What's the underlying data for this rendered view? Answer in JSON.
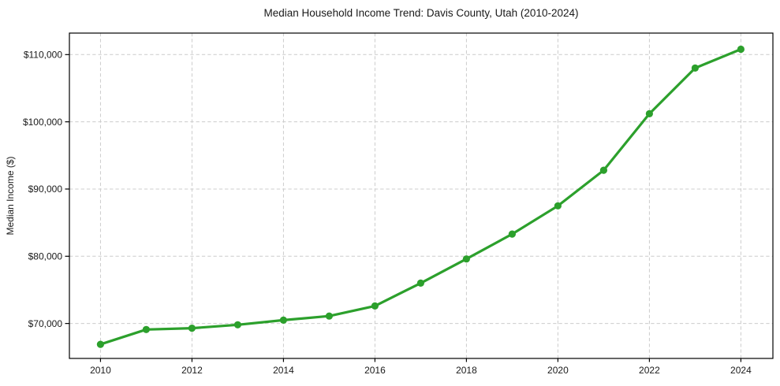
{
  "title": "Median Household Income Trend: Davis County, Utah (2010-2024)",
  "chart_data": {
    "type": "line",
    "title": "Median Household Income Trend: Davis County, Utah (2010-2024)",
    "xlabel": "",
    "ylabel": "Median Income ($)",
    "x": [
      2010,
      2011,
      2012,
      2013,
      2014,
      2015,
      2016,
      2017,
      2018,
      2019,
      2020,
      2021,
      2022,
      2023,
      2024
    ],
    "series": [
      {
        "name": "Median Household Income",
        "values": [
          66900,
          69100,
          69300,
          69800,
          70500,
          71100,
          72600,
          76000,
          79600,
          83300,
          87500,
          92800,
          101200,
          108000,
          110800
        ]
      }
    ],
    "xlim": [
      2009.32,
      2024.7
    ],
    "ylim": [
      64800,
      113200
    ],
    "xtick_values": [
      2010,
      2012,
      2014,
      2016,
      2018,
      2020,
      2022,
      2024
    ],
    "xtick_labels": [
      "2010",
      "2012",
      "2014",
      "2016",
      "2018",
      "2020",
      "2022",
      "2024"
    ],
    "ytick_values": [
      70000,
      80000,
      90000,
      100000,
      110000
    ],
    "ytick_labels": [
      "$70,000",
      "$80,000",
      "$90,000",
      "$100,000",
      "$110,000"
    ],
    "grid": true,
    "grid_style": "dashed",
    "legend": false,
    "line_color": "#2ca02c",
    "marker": "circle",
    "grid_color": "#cccccc",
    "frame_color": "#000000",
    "background_color": "#ffffff"
  }
}
